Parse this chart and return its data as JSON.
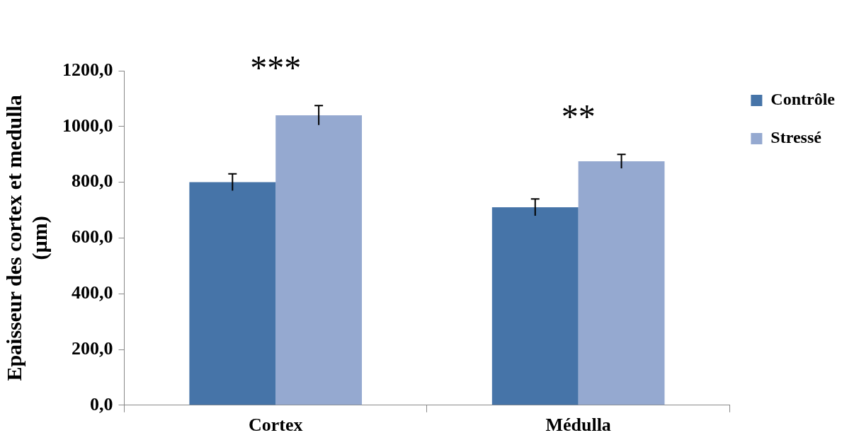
{
  "chart_data": {
    "type": "bar",
    "ylabel": "Epaisseur des cortex et medulla (µm)",
    "categories": [
      "Cortex",
      "Médulla"
    ],
    "series": [
      {
        "name": "Contrôle",
        "color": "#4674a8",
        "values": [
          800,
          710
        ],
        "errors": [
          30,
          30
        ]
      },
      {
        "name": "Stressé",
        "color": "#95a9d0",
        "values": [
          1040,
          875
        ],
        "errors": [
          35,
          25
        ]
      }
    ],
    "ylim": [
      0,
      1200
    ],
    "yticks": [
      {
        "value": 0,
        "label": "0,0"
      },
      {
        "value": 200,
        "label": "200,0"
      },
      {
        "value": 400,
        "label": "400,0"
      },
      {
        "value": 600,
        "label": "600,0"
      },
      {
        "value": 800,
        "label": "800,0"
      },
      {
        "value": 1000,
        "label": "1000,0"
      },
      {
        "value": 1200,
        "label": "1200,0"
      }
    ],
    "annotations": [
      "***",
      "**"
    ],
    "legend": "top right",
    "grid": false
  }
}
